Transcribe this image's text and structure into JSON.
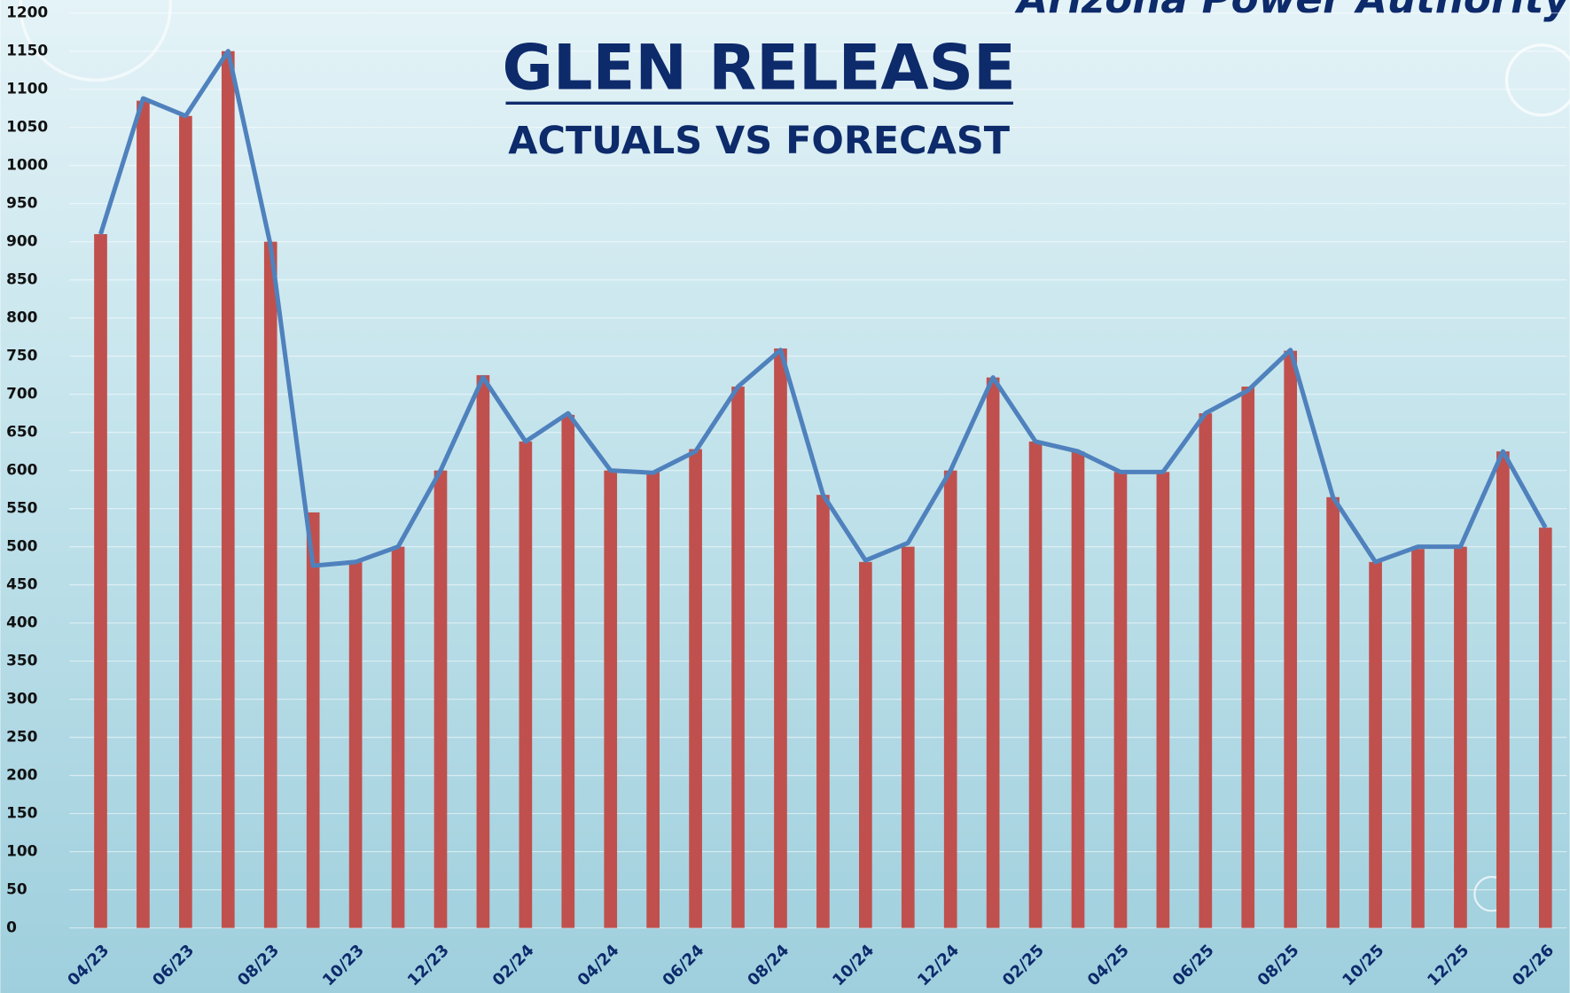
{
  "brand": "Arizona Power Authority",
  "chart_data": {
    "type": "bar",
    "title": "GLEN RELEASE",
    "subtitle": "ACTUALS VS FORECAST",
    "categories": [
      "04/23",
      null,
      "06/23",
      null,
      "08/23",
      null,
      "10/23",
      null,
      "12/23",
      null,
      "02/24",
      null,
      "04/24",
      null,
      "06/24",
      null,
      "08/24",
      null,
      "10/24",
      null,
      "12/24",
      null,
      "02/25",
      null,
      "04/25",
      null,
      "06/25",
      null,
      "08/25",
      null,
      "10/25",
      null,
      "12/25",
      null,
      "02/26"
    ],
    "series": [
      {
        "type": "bar",
        "color": "#c0504d",
        "values": [
          910,
          1085,
          1065,
          1150,
          900,
          545,
          480,
          500,
          600,
          725,
          638,
          673,
          600,
          598,
          628,
          710,
          760,
          568,
          480,
          500,
          600,
          722,
          638,
          625,
          598,
          598,
          675,
          710,
          757,
          565,
          480,
          497,
          500,
          625,
          525
        ]
      },
      {
        "type": "line",
        "color": "#4f81bd",
        "values": [
          910,
          1088,
          1065,
          1150,
          895,
          475,
          480,
          500,
          600,
          722,
          638,
          675,
          600,
          597,
          625,
          710,
          758,
          568,
          482,
          505,
          600,
          722,
          638,
          625,
          598,
          598,
          675,
          705,
          758,
          565,
          480,
          500,
          500,
          625,
          525
        ]
      }
    ],
    "ylim": [
      0,
      1200
    ],
    "yticks": [
      0,
      50,
      100,
      150,
      200,
      250,
      300,
      350,
      400,
      450,
      500,
      550,
      600,
      650,
      700,
      750,
      800,
      850,
      900,
      950,
      1000,
      1050,
      1100,
      1150,
      1200
    ],
    "grid": true
  }
}
